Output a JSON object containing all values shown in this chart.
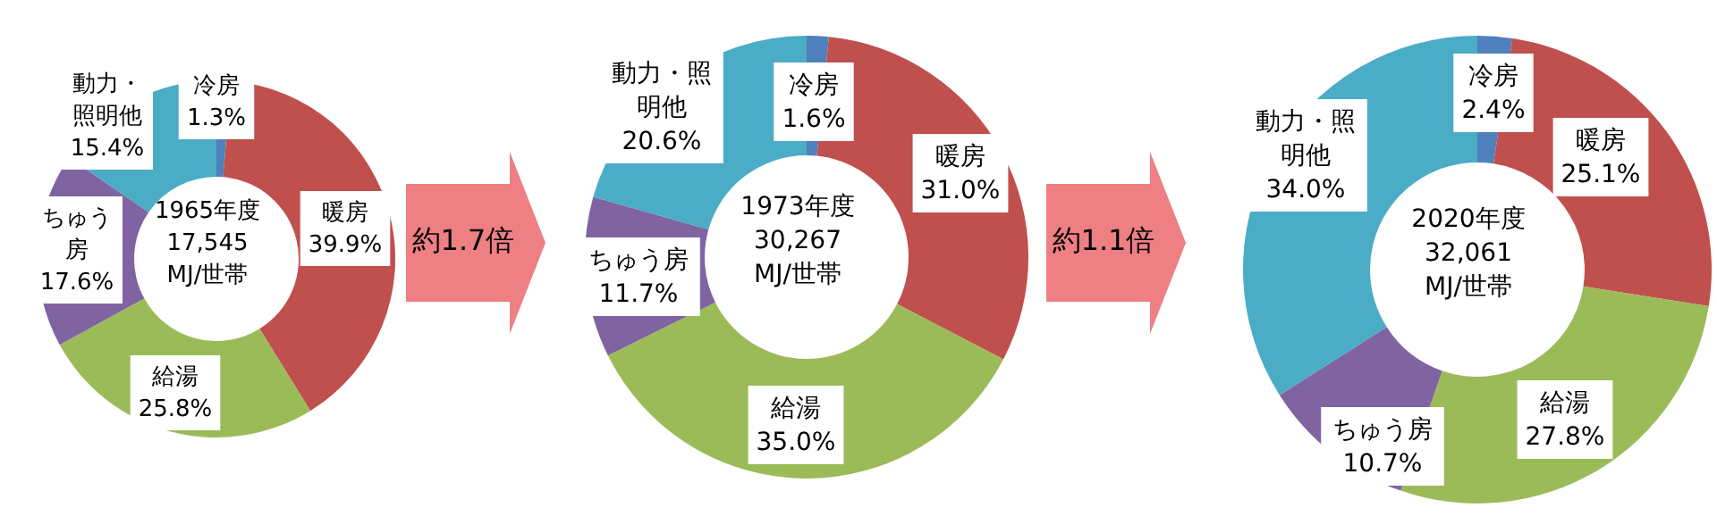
{
  "chart_data": [
    {
      "type": "donut",
      "title": "1965年度",
      "subtitle": "17,545 MJ/世帯",
      "categories": [
        "冷房",
        "暖房",
        "給湯",
        "ちゅう房",
        "動力・照明他"
      ],
      "values": [
        1.3,
        39.9,
        25.8,
        17.6,
        15.4
      ],
      "value_labels": [
        "1.3%",
        "39.9%",
        "25.8%",
        "17.6%",
        "15.4%"
      ],
      "colors": [
        "#4f81bd",
        "#c0504d",
        "#9bbb59",
        "#8064a2",
        "#4bacc6"
      ],
      "data_labels": true,
      "legend": false,
      "annotations": [
        "約1.7倍"
      ]
    },
    {
      "type": "donut",
      "title": "1973年度",
      "subtitle": "30,267 MJ/世帯",
      "categories": [
        "冷房",
        "暖房",
        "給湯",
        "ちゅう房",
        "動力・照明他"
      ],
      "values": [
        1.6,
        31.0,
        35.0,
        11.7,
        20.6
      ],
      "value_labels": [
        "1.6%",
        "31.0%",
        "35.0%",
        "11.7%",
        "20.6%"
      ],
      "colors": [
        "#4f81bd",
        "#c0504d",
        "#9bbb59",
        "#8064a2",
        "#4bacc6"
      ],
      "data_labels": true,
      "legend": false,
      "annotations": [
        "約1.1倍"
      ]
    },
    {
      "type": "donut",
      "title": "2020年度",
      "subtitle": "32,061 MJ/世帯",
      "categories": [
        "冷房",
        "暖房",
        "給湯",
        "ちゅう房",
        "動力・照明他"
      ],
      "values": [
        2.4,
        25.1,
        27.8,
        10.7,
        34.0
      ],
      "value_labels": [
        "2.4%",
        "25.1%",
        "27.8%",
        "10.7%",
        "34.0%"
      ],
      "colors": [
        "#4f81bd",
        "#c0504d",
        "#9bbb59",
        "#8064a2",
        "#4bacc6"
      ],
      "data_labels": true,
      "legend": false
    }
  ]
}
